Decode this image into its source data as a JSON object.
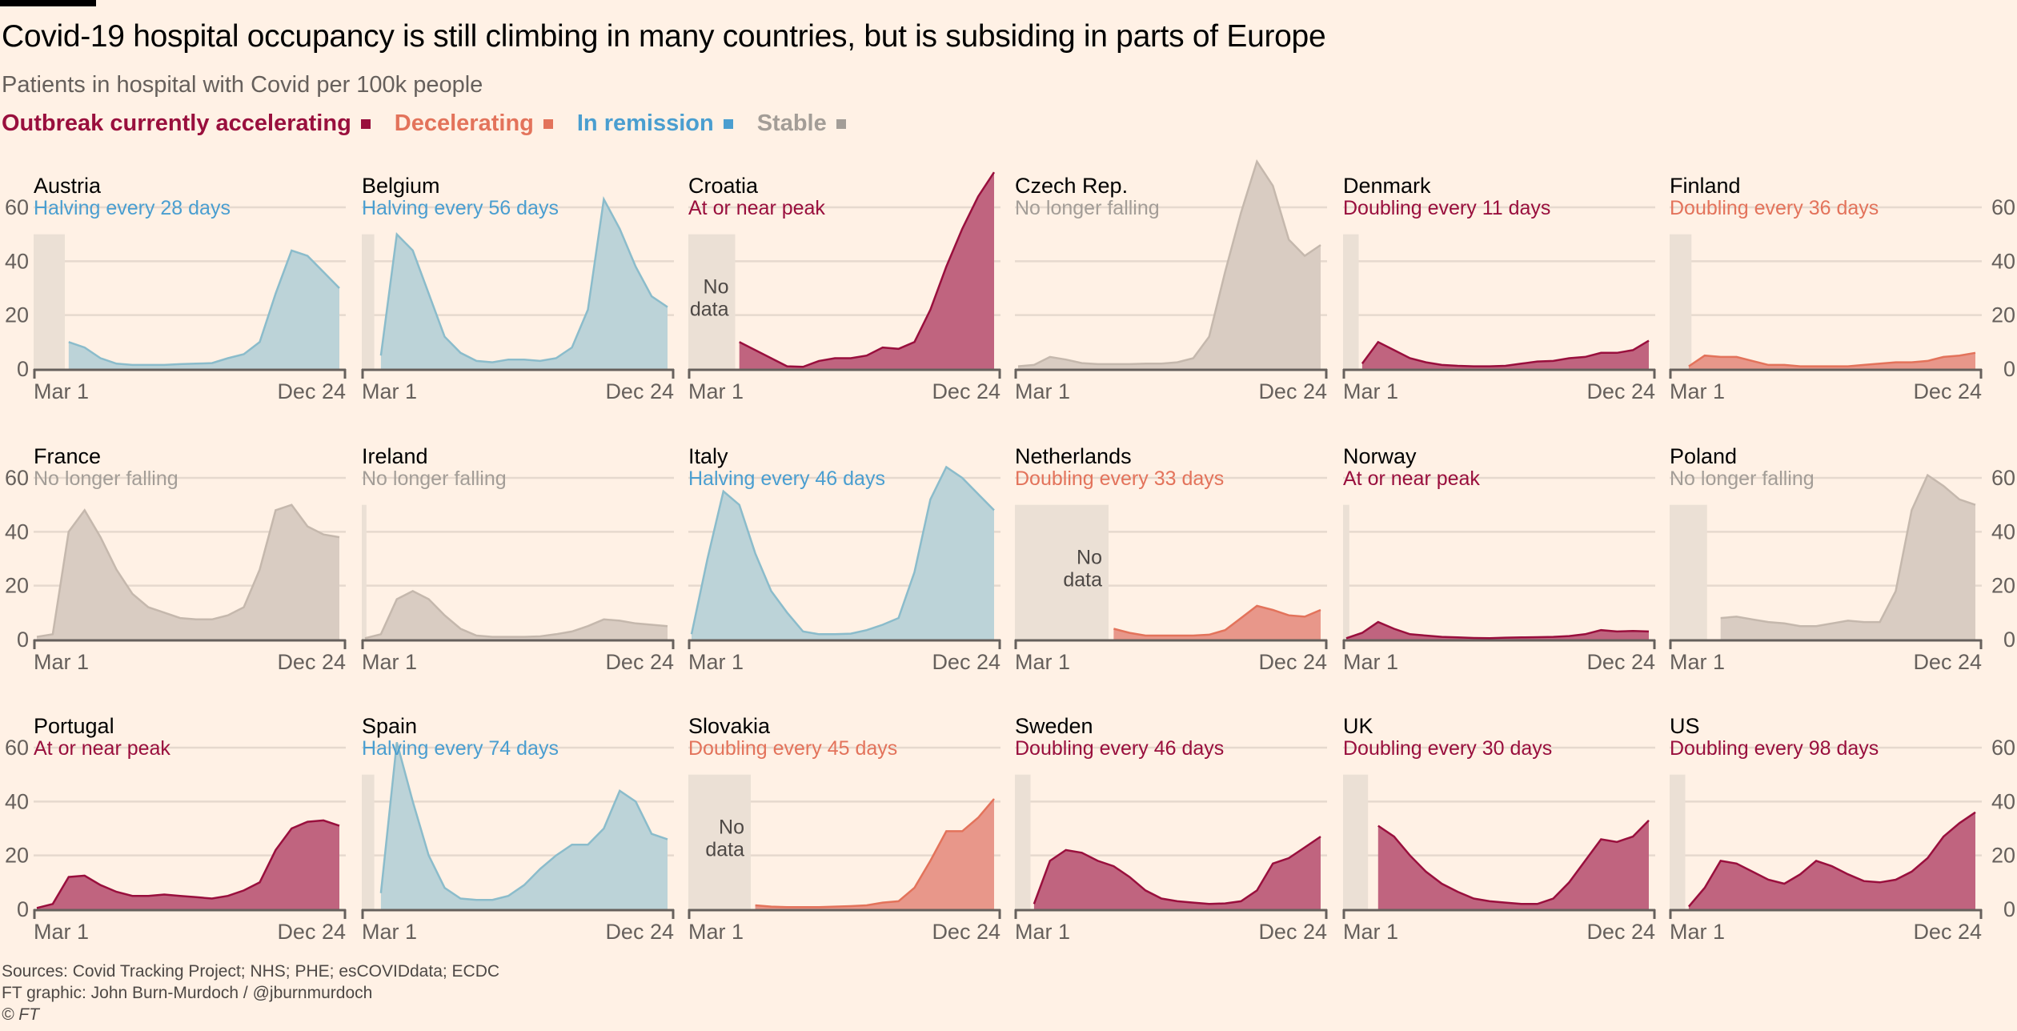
{
  "header": {
    "title": "Covid-19 hospital occupancy is still climbing in many countries, but is subsiding in parts of Europe",
    "subtitle": "Patients in hospital with Covid per 100k people"
  },
  "legend": [
    {
      "key": "accelerating",
      "label": "Outbreak currently accelerating",
      "color": "#990f3d"
    },
    {
      "key": "decelerating",
      "label": "Decelerating",
      "color": "#e3735b"
    },
    {
      "key": "remission",
      "label": "In remission",
      "color": "#4a9ed0"
    },
    {
      "key": "stable",
      "label": "Stable",
      "color": "#a39d97"
    }
  ],
  "footer": {
    "sources": "Sources: Covid Tracking Project; NHS; PHE; esCOVIDdata; ECDC",
    "credit": "FT graphic: John Burn-Murdoch / @jburnmurdoch",
    "copyright": "© FT"
  },
  "chart_data": {
    "type": "area",
    "title": "Covid-19 hospital occupancy is still climbing in many countries, but is subsiding in parts of Europe",
    "subtitle": "Patients in hospital with Covid per 100k people",
    "xlabel": "",
    "ylabel": "Patients in hospital with Covid per 100k people",
    "x_range": [
      "Mar 1",
      "Dec 24"
    ],
    "x_ticks": [
      "Mar 1",
      "Dec 24"
    ],
    "ylim": [
      0,
      60
    ],
    "y_ticks": [
      0,
      20,
      40,
      60
    ],
    "grid": true,
    "legend_position": "top-left",
    "no_data_label": "No\ndata",
    "status_colors": {
      "accelerating": {
        "fill": "#c0647f",
        "line": "#990f3d",
        "text": "#990f3d"
      },
      "decelerating": {
        "fill": "#e8978a",
        "line": "#e3735b",
        "text": "#e3735b"
      },
      "remission": {
        "fill": "#bcd3d8",
        "line": "#8bbccb",
        "text": "#4a9ed0"
      },
      "stable": {
        "fill": "#d9ccc2",
        "line": "#c5b8ad",
        "text": "#a39d97"
      }
    },
    "x_note": "values sampled at 20 evenly spaced points from Mar 1 to Dec 24; null = no data",
    "panels": [
      {
        "country": "Austria",
        "status": "remission",
        "trend": "Halving every 28 days",
        "no_data_until": 0.1,
        "show_no_data_text": false,
        "values": [
          null,
          null,
          10,
          8,
          4,
          2,
          1.5,
          1.5,
          1.5,
          1.8,
          2,
          2.2,
          4,
          5.5,
          10,
          28,
          44,
          42,
          36,
          30
        ]
      },
      {
        "country": "Belgium",
        "status": "remission",
        "trend": "Halving every 56 days",
        "no_data_until": 0.04,
        "show_no_data_text": false,
        "values": [
          null,
          5,
          50,
          44,
          28,
          12,
          6,
          3,
          2.5,
          3.5,
          3.5,
          3,
          4,
          8,
          22,
          63,
          52,
          38,
          27,
          23
        ]
      },
      {
        "country": "Croatia",
        "status": "accelerating",
        "trend": "At or near peak",
        "no_data_until": 0.15,
        "show_no_data_text": true,
        "values": [
          null,
          null,
          null,
          10,
          7,
          4,
          1,
          0.8,
          3,
          4,
          4,
          5,
          8,
          7.5,
          10,
          22,
          38,
          52,
          64,
          73
        ]
      },
      {
        "country": "Czech Rep.",
        "status": "stable",
        "trend": "No longer falling",
        "no_data_until": 0,
        "show_no_data_text": false,
        "values": [
          1,
          1.5,
          4.5,
          3.5,
          2.2,
          1.8,
          1.8,
          1.8,
          2,
          2,
          2.5,
          4,
          12,
          36,
          58,
          77,
          68,
          48,
          42,
          46
        ]
      },
      {
        "country": "Denmark",
        "status": "accelerating",
        "trend": "Doubling every 11 days",
        "no_data_until": 0.05,
        "show_no_data_text": false,
        "values": [
          null,
          2,
          10,
          7,
          4,
          2.5,
          1.5,
          1.2,
          1,
          1,
          1.2,
          2,
          2.8,
          3,
          4,
          4.5,
          6,
          6,
          7,
          10.5
        ]
      },
      {
        "country": "Finland",
        "status": "decelerating",
        "trend": "Doubling every 36 days",
        "no_data_until": 0.07,
        "show_no_data_text": false,
        "values": [
          null,
          1,
          5,
          4.5,
          4.5,
          3,
          1.5,
          1.5,
          1,
          1,
          1,
          1,
          1.5,
          2,
          2.5,
          2.5,
          3,
          4.5,
          5,
          6
        ]
      },
      {
        "country": "France",
        "status": "stable",
        "trend": "No longer falling",
        "no_data_until": 0,
        "show_no_data_text": false,
        "values": [
          1,
          2,
          40,
          48,
          38,
          26,
          17,
          12,
          10,
          8,
          7.5,
          7.5,
          9,
          12,
          26,
          48,
          50,
          42,
          39,
          38
        ]
      },
      {
        "country": "Ireland",
        "status": "stable",
        "trend": "No longer falling",
        "no_data_until": 0.015,
        "show_no_data_text": false,
        "values": [
          0.5,
          2,
          15,
          18,
          15,
          9,
          4,
          1.5,
          1,
          1,
          1,
          1.2,
          2,
          3,
          5,
          7.5,
          7,
          6,
          5.5,
          5
        ]
      },
      {
        "country": "Italy",
        "status": "remission",
        "trend": "Halving every 46 days",
        "no_data_until": 0,
        "show_no_data_text": false,
        "values": [
          2,
          30,
          55,
          50,
          32,
          18,
          10,
          3,
          2,
          2,
          2.2,
          3.5,
          5.5,
          8,
          25,
          52,
          64,
          60,
          54,
          48
        ]
      },
      {
        "country": "Netherlands",
        "status": "decelerating",
        "trend": "Doubling every 33 days",
        "no_data_until": 0.3,
        "show_no_data_text": true,
        "values": [
          null,
          null,
          null,
          null,
          null,
          null,
          4,
          2.5,
          1.5,
          1.5,
          1.5,
          1.5,
          1.8,
          3.5,
          8,
          12.5,
          11,
          9,
          8.5,
          11
        ]
      },
      {
        "country": "Norway",
        "status": "accelerating",
        "trend": "At or near peak",
        "no_data_until": 0.02,
        "show_no_data_text": false,
        "values": [
          0.5,
          2.5,
          6.5,
          4,
          2,
          1.5,
          1,
          0.8,
          0.6,
          0.5,
          0.7,
          0.8,
          0.9,
          1,
          1.3,
          2,
          3.5,
          3,
          3.2,
          3
        ]
      },
      {
        "country": "Poland",
        "status": "stable",
        "trend": "No longer falling",
        "no_data_until": 0.12,
        "show_no_data_text": false,
        "values": [
          null,
          null,
          null,
          8,
          8.5,
          7.5,
          6.5,
          6,
          5,
          5,
          6,
          7,
          6.5,
          6.5,
          18,
          48,
          61,
          57,
          52,
          50
        ]
      },
      {
        "country": "Portugal",
        "status": "accelerating",
        "trend": "At or near peak",
        "no_data_until": 0,
        "show_no_data_text": false,
        "values": [
          0.5,
          2,
          12,
          12.5,
          9,
          6.5,
          5,
          5,
          5.5,
          5,
          4.5,
          4,
          5,
          7,
          10,
          22,
          30,
          32.5,
          33,
          31
        ]
      },
      {
        "country": "Spain",
        "status": "remission",
        "trend": "Halving every 74 days",
        "no_data_until": 0.04,
        "show_no_data_text": false,
        "values": [
          null,
          6,
          62,
          40,
          20,
          8,
          4,
          3.5,
          3.5,
          5,
          9,
          15,
          20,
          24,
          24,
          30,
          44,
          40,
          28,
          26
        ]
      },
      {
        "country": "Slovakia",
        "status": "decelerating",
        "trend": "Doubling every 45 days",
        "no_data_until": 0.2,
        "show_no_data_text": true,
        "values": [
          null,
          null,
          null,
          null,
          1.5,
          1,
          0.8,
          0.8,
          0.8,
          1,
          1.2,
          1.5,
          2.5,
          3,
          8,
          18,
          29,
          29,
          34,
          41
        ]
      },
      {
        "country": "Sweden",
        "status": "accelerating",
        "trend": "Doubling every 46 days",
        "no_data_until": 0.05,
        "show_no_data_text": false,
        "values": [
          null,
          2,
          18,
          22,
          21,
          18,
          16,
          12,
          7,
          4,
          3,
          2.5,
          2,
          2.2,
          3,
          7,
          17,
          19,
          23,
          27
        ]
      },
      {
        "country": "UK",
        "status": "accelerating",
        "trend": "Doubling every 30 days",
        "no_data_until": 0.08,
        "show_no_data_text": false,
        "values": [
          null,
          null,
          31,
          27,
          20,
          14,
          9.5,
          6.5,
          4,
          3,
          2.5,
          2,
          2,
          4,
          10,
          18,
          26,
          25,
          27,
          33
        ]
      },
      {
        "country": "US",
        "status": "accelerating",
        "trend": "Doubling every 98 days",
        "no_data_until": 0.05,
        "show_no_data_text": false,
        "values": [
          null,
          1,
          8,
          18,
          17,
          14,
          11,
          9.5,
          13,
          18,
          16,
          13,
          10.5,
          10,
          11,
          14,
          19,
          27,
          32,
          36
        ]
      }
    ]
  }
}
